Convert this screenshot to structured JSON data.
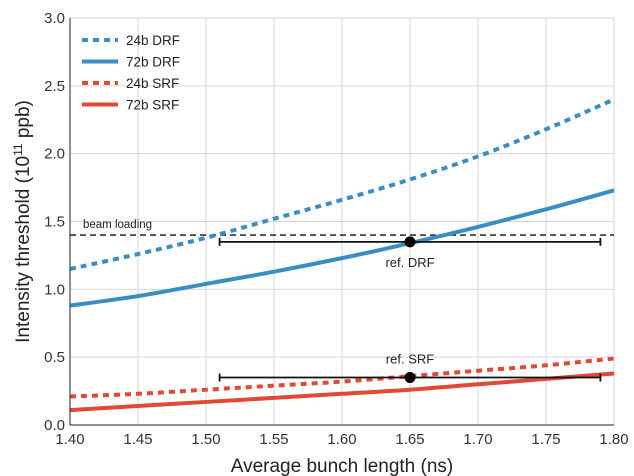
{
  "chart_data": {
    "type": "line",
    "title": "",
    "xlabel": "Average bunch length (ns)",
    "ylabel_main": "Intensity threshold (10",
    "ylabel_sup": "11",
    "ylabel_tail": " ppb)",
    "xlim": [
      1.4,
      1.8
    ],
    "ylim": [
      0.0,
      3.0
    ],
    "x_ticks": [
      "1.40",
      "1.45",
      "1.50",
      "1.55",
      "1.60",
      "1.65",
      "1.70",
      "1.75",
      "1.80"
    ],
    "y_ticks": [
      "0.0",
      "0.5",
      "1.0",
      "1.5",
      "2.0",
      "2.5",
      "3.0"
    ],
    "grid": true,
    "legend_position": "top-left",
    "series": [
      {
        "name": "24b DRF",
        "style": "dotted",
        "color": "#3a8dc4",
        "x": [
          1.4,
          1.45,
          1.5,
          1.55,
          1.6,
          1.65,
          1.7,
          1.75,
          1.8
        ],
        "y": [
          1.15,
          1.26,
          1.38,
          1.52,
          1.66,
          1.81,
          1.98,
          2.18,
          2.4
        ]
      },
      {
        "name": "72b DRF",
        "style": "solid",
        "color": "#3a8dc4",
        "x": [
          1.4,
          1.45,
          1.5,
          1.55,
          1.6,
          1.65,
          1.7,
          1.75,
          1.8
        ],
        "y": [
          0.88,
          0.95,
          1.04,
          1.13,
          1.23,
          1.34,
          1.46,
          1.59,
          1.73
        ]
      },
      {
        "name": "24b SRF",
        "style": "dotted",
        "color": "#e04a34",
        "x": [
          1.4,
          1.45,
          1.5,
          1.55,
          1.6,
          1.65,
          1.7,
          1.75,
          1.8
        ],
        "y": [
          0.21,
          0.23,
          0.26,
          0.29,
          0.32,
          0.36,
          0.4,
          0.44,
          0.49
        ]
      },
      {
        "name": "72b SRF",
        "style": "solid",
        "color": "#e04a34",
        "x": [
          1.4,
          1.45,
          1.5,
          1.55,
          1.6,
          1.65,
          1.7,
          1.75,
          1.8
        ],
        "y": [
          0.11,
          0.14,
          0.17,
          0.2,
          0.23,
          0.26,
          0.3,
          0.34,
          0.38
        ]
      }
    ],
    "reference_line": {
      "label": "beam loading",
      "y": 1.4,
      "style": "dashed"
    },
    "reference_points": [
      {
        "label": "ref. DRF",
        "x": 1.65,
        "y": 1.35,
        "x_err_low": 1.51,
        "x_err_high": 1.79
      },
      {
        "label": "ref. SRF",
        "x": 1.65,
        "y": 0.35,
        "x_err_low": 1.51,
        "x_err_high": 1.79
      }
    ]
  }
}
